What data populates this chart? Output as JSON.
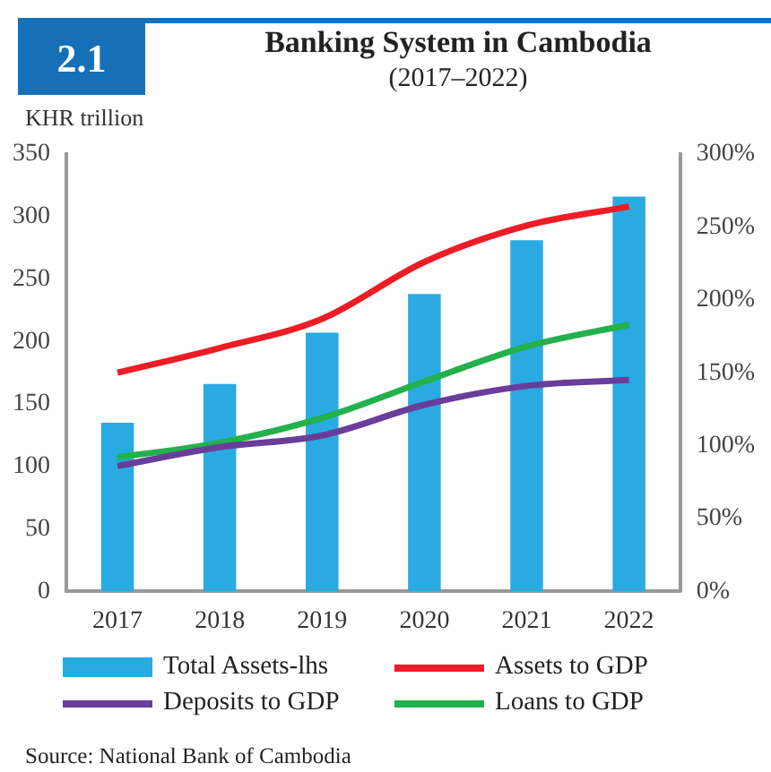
{
  "chart_data": {
    "type": "bar",
    "title": "Banking System in Cambodia",
    "subtitle": "(2017–2022)",
    "ylabel": "KHR trillion",
    "annotations": [
      "2.1",
      "Source: National Bank of Cambodia"
    ],
    "categories": [
      "2017",
      "2018",
      "2019",
      "2020",
      "2021",
      "2022"
    ],
    "series": [
      {
        "name": "Total Assets-lhs",
        "color": "#29abe2",
        "values": [
          135,
          166,
          207,
          238,
          281,
          316
        ]
      },
      {
        "name": "Assets to GDP",
        "type": "line",
        "axis": "y2",
        "color": "#ee1c25",
        "values": [
          150,
          167,
          187,
          226,
          251,
          264
        ]
      },
      {
        "name": "Deposits to GDP",
        "type": "line",
        "axis": "y2",
        "color": "#6a3d9a",
        "values": [
          86,
          99,
          107,
          128,
          141,
          145
        ]
      },
      {
        "name": "Loans to GDP",
        "type": "line",
        "axis": "y2",
        "color": "#22b14c",
        "values": [
          92,
          102,
          119,
          144,
          168,
          183
        ]
      }
    ],
    "ylim": [
      0,
      350
    ],
    "yticks": [
      0,
      50,
      100,
      150,
      200,
      250,
      300,
      350
    ],
    "y2lim": [
      0,
      300
    ],
    "y2ticks": [
      {
        "value": 0,
        "label": "0%"
      },
      {
        "value": 50,
        "label": "50%"
      },
      {
        "value": 100,
        "label": "100%"
      },
      {
        "value": 150,
        "label": "150%"
      },
      {
        "value": 200,
        "label": "200%"
      },
      {
        "value": 250,
        "label": "250%"
      },
      {
        "value": 300,
        "label": "300%"
      }
    ],
    "grid": false,
    "legend": "bottom",
    "marker": "none",
    "line_style": "solid"
  }
}
